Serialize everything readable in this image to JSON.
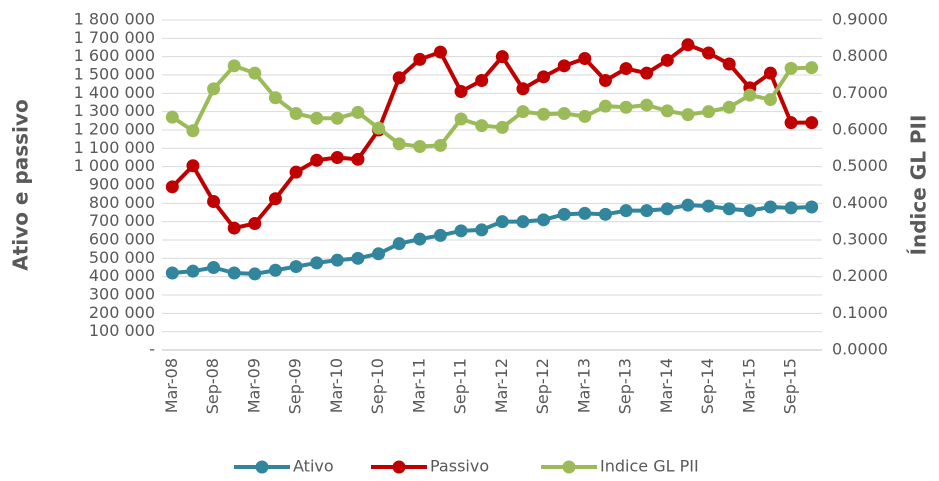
{
  "chart_data": {
    "type": "line",
    "categories": [
      "Mar-08",
      null,
      "Sep-08",
      null,
      "Mar-09",
      null,
      "Sep-09",
      null,
      "Mar-10",
      null,
      "Sep-10",
      null,
      "Mar-11",
      null,
      "Sep-11",
      null,
      "Mar-12",
      null,
      "Sep-12",
      null,
      "Mar-13",
      null,
      "Sep-13",
      null,
      "Mar-14",
      null,
      "Sep-14",
      null,
      "Mar-15",
      null,
      "Sep-15",
      null
    ],
    "y_label": "Ativo e passivo",
    "y2_label": "Índice GL PII",
    "series": [
      {
        "name": "Ativo",
        "color": "#31859c",
        "values": [
          420000,
          430000,
          450000,
          420000,
          415000,
          435000,
          455000,
          475000,
          490000,
          500000,
          525000,
          580000,
          605000,
          625000,
          650000,
          655000,
          700000,
          700000,
          710000,
          740000,
          745000,
          740000,
          760000,
          760000,
          770000,
          790000,
          785000,
          770000,
          760000,
          780000,
          775000,
          780000
        ]
      },
      {
        "name": "Passivo",
        "color": "#c00000",
        "values": [
          890000,
          1005000,
          810000,
          665000,
          690000,
          825000,
          970000,
          1035000,
          1050000,
          1040000,
          1200000,
          1485000,
          1585000,
          1625000,
          1410000,
          1470000,
          1600000,
          1425000,
          1490000,
          1550000,
          1590000,
          1470000,
          1535000,
          1510000,
          1580000,
          1665000,
          1620000,
          1560000,
          1430000,
          1510000,
          1240000,
          1240000
        ]
      },
      {
        "name": "Indice GL PII",
        "color": "#9bbb59",
        "axis": "y2",
        "values": [
          0.635,
          0.598,
          0.712,
          0.775,
          0.755,
          0.688,
          0.645,
          0.632,
          0.632,
          0.648,
          0.605,
          0.562,
          0.555,
          0.558,
          0.63,
          0.612,
          0.607,
          0.65,
          0.643,
          0.645,
          0.637,
          0.665,
          0.662,
          0.668,
          0.652,
          0.642,
          0.65,
          0.662,
          0.695,
          0.683,
          0.768,
          0.77
        ]
      }
    ],
    "ylim": [
      0,
      1800000
    ],
    "yticks": [
      {
        "value": 0,
        "label": "-"
      },
      {
        "value": 100000,
        "label": "100 000"
      },
      {
        "value": 200000,
        "label": "200 000"
      },
      {
        "value": 300000,
        "label": "300 000"
      },
      {
        "value": 400000,
        "label": "400 000"
      },
      {
        "value": 500000,
        "label": "500 000"
      },
      {
        "value": 600000,
        "label": "600 000"
      },
      {
        "value": 700000,
        "label": "700 000"
      },
      {
        "value": 800000,
        "label": "800 000"
      },
      {
        "value": 900000,
        "label": "900 000"
      },
      {
        "value": 1000000,
        "label": "1 000 000"
      },
      {
        "value": 1100000,
        "label": "1 100 000"
      },
      {
        "value": 1200000,
        "label": "1 200 000"
      },
      {
        "value": 1300000,
        "label": "1 300 000"
      },
      {
        "value": 1400000,
        "label": "1 400 000"
      },
      {
        "value": 1500000,
        "label": "1 500 000"
      },
      {
        "value": 1600000,
        "label": "1 600 000"
      },
      {
        "value": 1700000,
        "label": "1 700 000"
      },
      {
        "value": 1800000,
        "label": "1 800 000"
      }
    ],
    "y2lim": [
      0,
      0.9
    ],
    "y2ticks": [
      {
        "value": 0,
        "label": "0.0000"
      },
      {
        "value": 0.1,
        "label": "0.1000"
      },
      {
        "value": 0.2,
        "label": "0.2000"
      },
      {
        "value": 0.3,
        "label": "0.3000"
      },
      {
        "value": 0.4,
        "label": "0.4000"
      },
      {
        "value": 0.5,
        "label": "0.5000"
      },
      {
        "value": 0.6,
        "label": "0.6000"
      },
      {
        "value": 0.7,
        "label": "0.7000"
      },
      {
        "value": 0.8,
        "label": "0.8000"
      },
      {
        "value": 0.9,
        "label": "0.9000"
      }
    ],
    "grid": true,
    "legend": "bottom"
  }
}
